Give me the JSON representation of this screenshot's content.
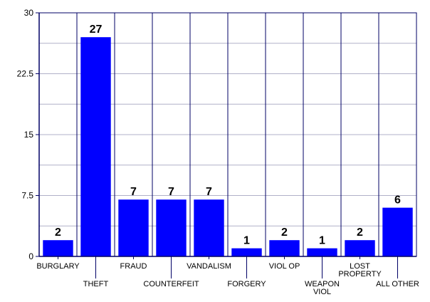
{
  "chart_data": {
    "type": "bar",
    "categories": [
      [
        "BURGLARY"
      ],
      [
        "THEFT"
      ],
      [
        "FRAUD"
      ],
      [
        "COUNTERFEIT"
      ],
      [
        "VANDALISM"
      ],
      [
        "FORGERY"
      ],
      [
        "VIOL OP"
      ],
      [
        "WEAPON",
        "VIOL"
      ],
      [
        "LOST",
        "PROPERTY"
      ],
      [
        "ALL OTHER"
      ]
    ],
    "values": [
      2,
      27,
      7,
      7,
      7,
      1,
      2,
      1,
      2,
      6
    ],
    "ylim": [
      0,
      30
    ],
    "yticks": [
      "0",
      "7.5",
      "15",
      "22.5",
      "30"
    ],
    "title": "",
    "xlabel": "",
    "ylabel": "",
    "grid": true,
    "bar_color": "#0000ff",
    "axis_color": "#000066",
    "grid_color": "#b0b0c8"
  }
}
